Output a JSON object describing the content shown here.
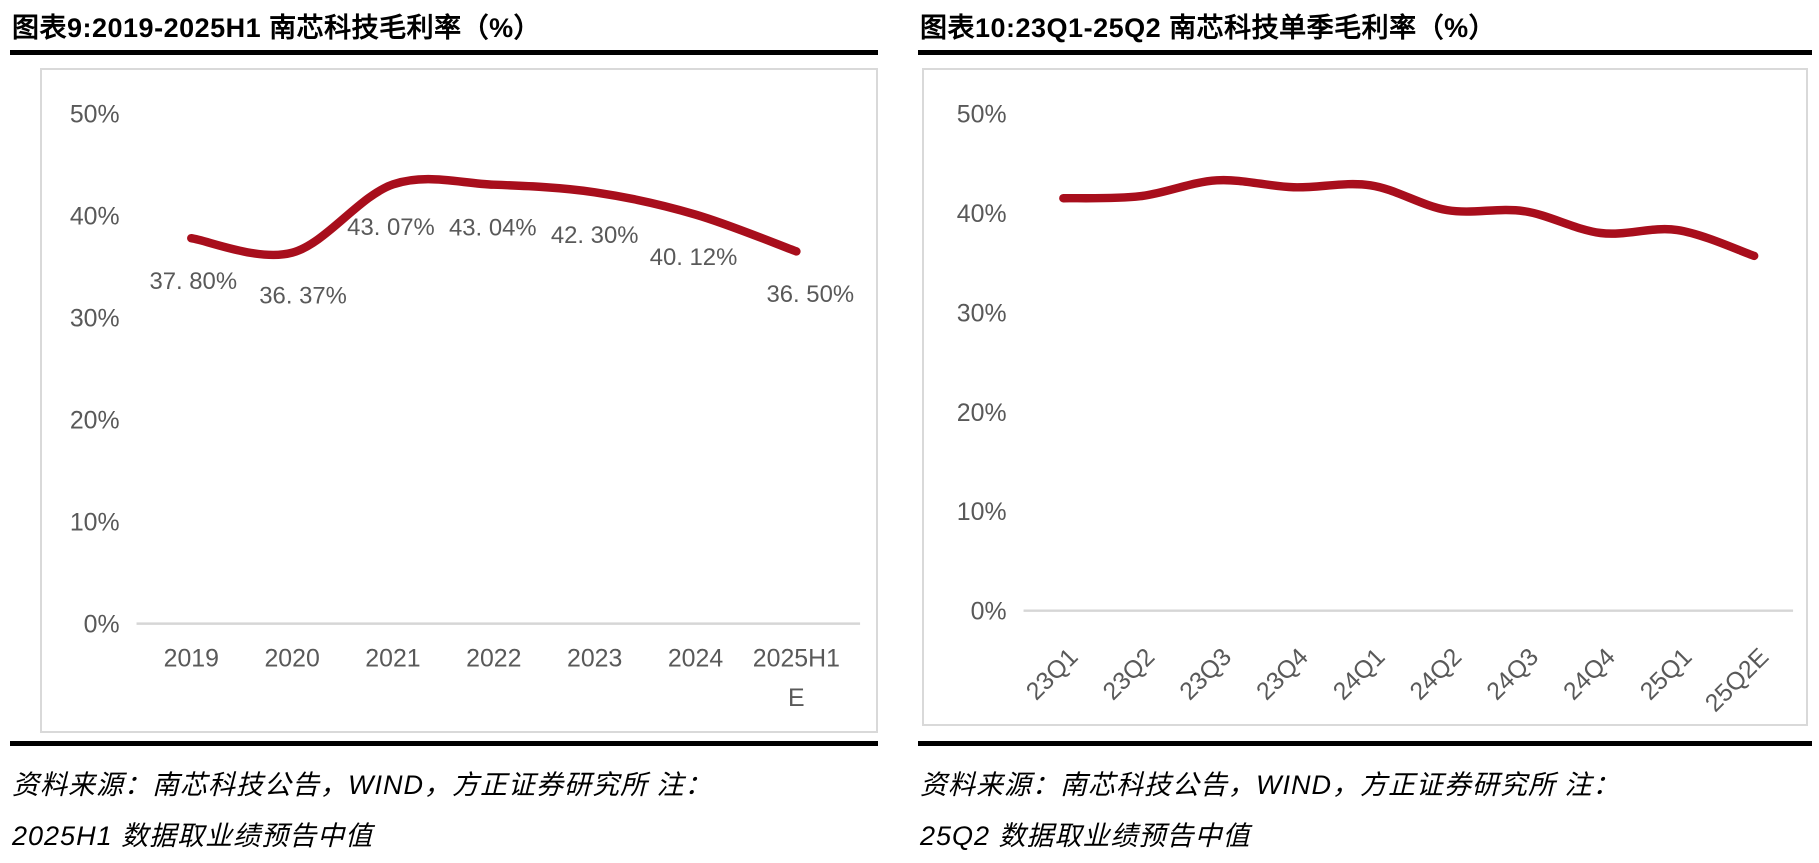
{
  "page": {
    "background": "#ffffff"
  },
  "colors": {
    "line_red": "#a80e1c",
    "frame_gray": "#d9d9d9",
    "grid_gray": "#d6d6d6",
    "tick_text_gray": "#595959",
    "rule_black": "#000000"
  },
  "figures": [
    {
      "title": "图表9:2019-2025H1 南芯科技毛利率（%）",
      "source_line1": "资料来源：南芯科技公告，WIND，方正证券研究所  注：",
      "source_line2": "2025H1 数据取业绩预告中值"
    },
    {
      "title": "图表10:23Q1-25Q2 南芯科技单季毛利率（%）",
      "source_line1": "资料来源：南芯科技公告，WIND，方正证券研究所  注：",
      "source_line2": "25Q2 数据取业绩预告中值"
    }
  ],
  "chart_data": [
    {
      "type": "line",
      "title": "图表9:2019-2025H1 南芯科技毛利率（%）",
      "categories": [
        "2019",
        "2020",
        "2021",
        "2022",
        "2023",
        "2024",
        "2025H1E"
      ],
      "x_tick_lines": [
        [
          "2019"
        ],
        [
          "2020"
        ],
        [
          "2021"
        ],
        [
          "2022"
        ],
        [
          "2023"
        ],
        [
          "2024"
        ],
        [
          "2025H1",
          "E"
        ]
      ],
      "values": [
        37.8,
        36.37,
        43.07,
        43.04,
        42.3,
        40.12,
        36.5
      ],
      "data_labels": [
        "37. 80%",
        "36. 37%",
        "43. 07%",
        "43. 04%",
        "42. 30%",
        "40. 12%",
        "36. 50%"
      ],
      "ylim": [
        0,
        50
      ],
      "yticks": [
        {
          "value": 0,
          "label": "0%"
        },
        {
          "value": 10,
          "label": "10%"
        },
        {
          "value": 20,
          "label": "20%"
        },
        {
          "value": 30,
          "label": "30%"
        },
        {
          "value": 40,
          "label": "40%"
        },
        {
          "value": 50,
          "label": "50%"
        }
      ],
      "grid": "zero-line-only",
      "legend": "none",
      "smooth": true,
      "xlabel": "",
      "ylabel": ""
    },
    {
      "type": "line",
      "title": "图表10:23Q1-25Q2 南芯科技单季毛利率（%）",
      "categories": [
        "23Q1",
        "23Q2",
        "23Q3",
        "23Q4",
        "24Q1",
        "24Q2",
        "24Q3",
        "24Q4",
        "25Q1",
        "25Q2E"
      ],
      "values": [
        41.5,
        41.7,
        43.3,
        42.6,
        42.8,
        40.3,
        40.2,
        38.0,
        38.3,
        35.7
      ],
      "values_are_estimates_from_pixels": true,
      "data_labels": [],
      "ylim": [
        0,
        50
      ],
      "yticks": [
        {
          "value": 0,
          "label": "0%"
        },
        {
          "value": 10,
          "label": "10%"
        },
        {
          "value": 20,
          "label": "20%"
        },
        {
          "value": 30,
          "label": "30%"
        },
        {
          "value": 40,
          "label": "40%"
        },
        {
          "value": 50,
          "label": "50%"
        }
      ],
      "grid": "zero-line-only",
      "legend": "none",
      "smooth": true,
      "x_tick_rotation_deg": -45,
      "xlabel": "",
      "ylabel": ""
    }
  ]
}
